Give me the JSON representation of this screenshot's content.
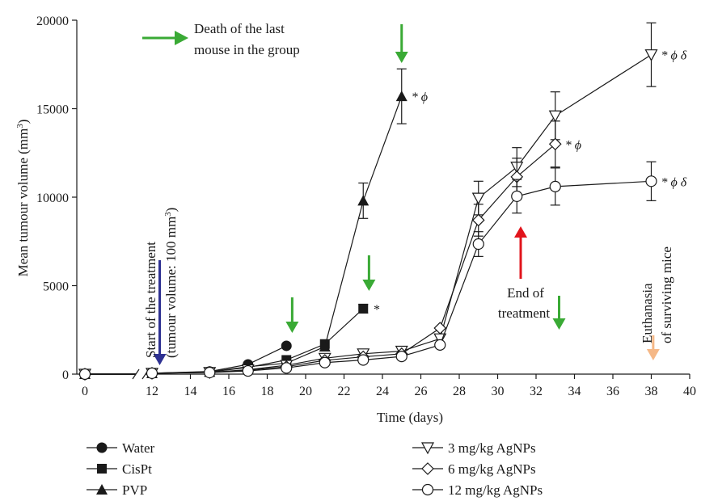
{
  "chart_data": {
    "type": "line",
    "xlabel": "Time (days)",
    "ylabel_text": "Mean tumour volume (mm",
    "ylabel_sup": "3",
    "ylabel_close": ")",
    "xlim": [
      0,
      40
    ],
    "ylim": [
      0,
      20000
    ],
    "axis_break_x": [
      0,
      12
    ],
    "x_ticks": [
      0,
      12,
      14,
      16,
      18,
      20,
      22,
      24,
      26,
      28,
      30,
      32,
      34,
      36,
      38,
      40
    ],
    "y_ticks": [
      0,
      5000,
      10000,
      15000,
      20000
    ],
    "grid": false,
    "legend_position": "bottom",
    "series": [
      {
        "name": "Water",
        "marker": "filled-circle",
        "x": [
          0,
          12,
          15,
          17,
          19
        ],
        "y": [
          0,
          50,
          150,
          550,
          1600
        ],
        "err": [
          0,
          0,
          0,
          0,
          0
        ],
        "annotation": ""
      },
      {
        "name": "CisPt",
        "marker": "filled-square",
        "x": [
          0,
          12,
          15,
          17,
          19,
          21,
          23
        ],
        "y": [
          0,
          50,
          120,
          380,
          800,
          1700,
          3700
        ],
        "err": [
          0,
          0,
          0,
          0,
          0,
          0,
          250
        ],
        "annotation": "*"
      },
      {
        "name": "PVP",
        "marker": "filled-triangle",
        "x": [
          0,
          12,
          15,
          17,
          19,
          21,
          23,
          25
        ],
        "y": [
          0,
          50,
          130,
          420,
          620,
          1550,
          9800,
          15700
        ],
        "err": [
          0,
          0,
          0,
          0,
          0,
          0,
          1000,
          1550
        ],
        "annotation": "* ϕ"
      },
      {
        "name": "3 mg/kg AgNPs",
        "marker": "open-triangle-down",
        "x": [
          0,
          12,
          15,
          17,
          19,
          21,
          23,
          25,
          27,
          29,
          31,
          33,
          38
        ],
        "y": [
          0,
          50,
          100,
          250,
          500,
          900,
          1150,
          1300,
          2000,
          9950,
          11700,
          14600,
          18050
        ],
        "err": [
          0,
          0,
          0,
          0,
          0,
          0,
          0,
          0,
          0,
          950,
          1100,
          1350,
          1800
        ],
        "annotation": "* ϕ δ"
      },
      {
        "name": "6 mg/kg AgNPs",
        "marker": "open-diamond",
        "x": [
          0,
          12,
          15,
          17,
          19,
          21,
          23,
          25,
          27,
          29,
          31,
          33
        ],
        "y": [
          0,
          50,
          100,
          220,
          420,
          780,
          980,
          1150,
          2600,
          8700,
          11150,
          13000
        ],
        "err": [
          0,
          0,
          0,
          0,
          0,
          0,
          0,
          0,
          0,
          900,
          1050,
          1300
        ],
        "annotation": "* ϕ"
      },
      {
        "name": "12 mg/kg AgNPs",
        "marker": "open-circle",
        "x": [
          0,
          12,
          15,
          17,
          19,
          21,
          23,
          25,
          27,
          29,
          31,
          33,
          38
        ],
        "y": [
          0,
          50,
          90,
          180,
          350,
          650,
          800,
          1000,
          1650,
          7350,
          10050,
          10600,
          10900
        ],
        "err": [
          0,
          0,
          0,
          0,
          0,
          0,
          0,
          0,
          0,
          700,
          950,
          1050,
          1100
        ],
        "annotation": "* ϕ δ"
      }
    ],
    "annotations": {
      "death_legend_line1": "Death of the last",
      "death_legend_line2": "mouse in the group",
      "start_line1": "Start of the treatment",
      "start_line2_prefix": "(tumour volume: 100 mm",
      "start_line2_sup": "3",
      "start_line2_suffix": ")",
      "end_line1": "End of",
      "end_line2": "treatment",
      "euth_line1": "Euthanasia",
      "euth_line2": "of surviving mice",
      "death_arrow_days": [
        19.3,
        23.3,
        25,
        33.2
      ],
      "start_arrow_day": 12.4,
      "end_arrow_day": 31.2,
      "euth_arrow_day": 38.1
    },
    "colors": {
      "axes": "#1a1a1a",
      "death_arrow": "#3aaa35",
      "start_arrow": "#2e3192",
      "end_arrow": "#e1141c",
      "euth_arrow": "#f5b887"
    }
  }
}
